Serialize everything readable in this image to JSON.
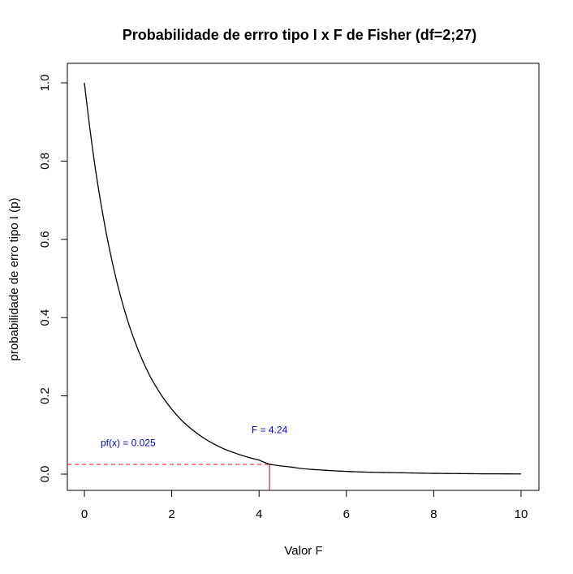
{
  "chart_data": {
    "type": "line",
    "title": "Probabilidade de errro tipo I x F de Fisher (df=2;27)",
    "xlabel": "Valor F",
    "ylabel": "probabilidade de erro tipo I (p)",
    "xlim": [
      0,
      10
    ],
    "ylim": [
      0,
      1
    ],
    "xticks": [
      "0",
      "2",
      "4",
      "6",
      "8",
      "10"
    ],
    "yticks": [
      "0.0",
      "0.2",
      "0.4",
      "0.6",
      "0.8",
      "1.0"
    ],
    "grid": false,
    "series": [
      {
        "color": "#000000",
        "x": [
          0,
          0.25,
          0.5,
          0.75,
          1,
          1.25,
          1.5,
          1.75,
          2,
          2.25,
          2.5,
          2.75,
          3,
          3.25,
          3.5,
          3.75,
          4,
          4.25,
          4.5,
          4.75,
          5,
          5.5,
          6,
          6.5,
          7,
          7.5,
          8,
          8.5,
          9,
          9.5,
          10
        ],
        "y": [
          1.0,
          0.781,
          0.616,
          0.488,
          0.389,
          0.312,
          0.251,
          0.204,
          0.166,
          0.135,
          0.111,
          0.091,
          0.075,
          0.062,
          0.052,
          0.043,
          0.036,
          0.025,
          0.021,
          0.018,
          0.014,
          0.01,
          0.007,
          0.005,
          0.004,
          0.003,
          0.002,
          0.0015,
          0.001,
          0.0007,
          0.0005
        ]
      }
    ],
    "annotations": [
      {
        "text": "F = 4.24",
        "x": 4.24,
        "y": 0.105,
        "color": "#0000CC"
      },
      {
        "text": "pf(x) = 0.025",
        "x": 1.0,
        "y": 0.072,
        "color": "#0000CC"
      }
    ],
    "reference_lines": {
      "horizontal": {
        "y": 0.025,
        "x_from": -0.5,
        "x_to": 4.24,
        "style": "dashed",
        "color": "#FF0000"
      },
      "vertical": {
        "x": 4.24,
        "y_from": -0.05,
        "y_to": 0.025,
        "style": "solid",
        "color": "#CC0000"
      }
    }
  }
}
